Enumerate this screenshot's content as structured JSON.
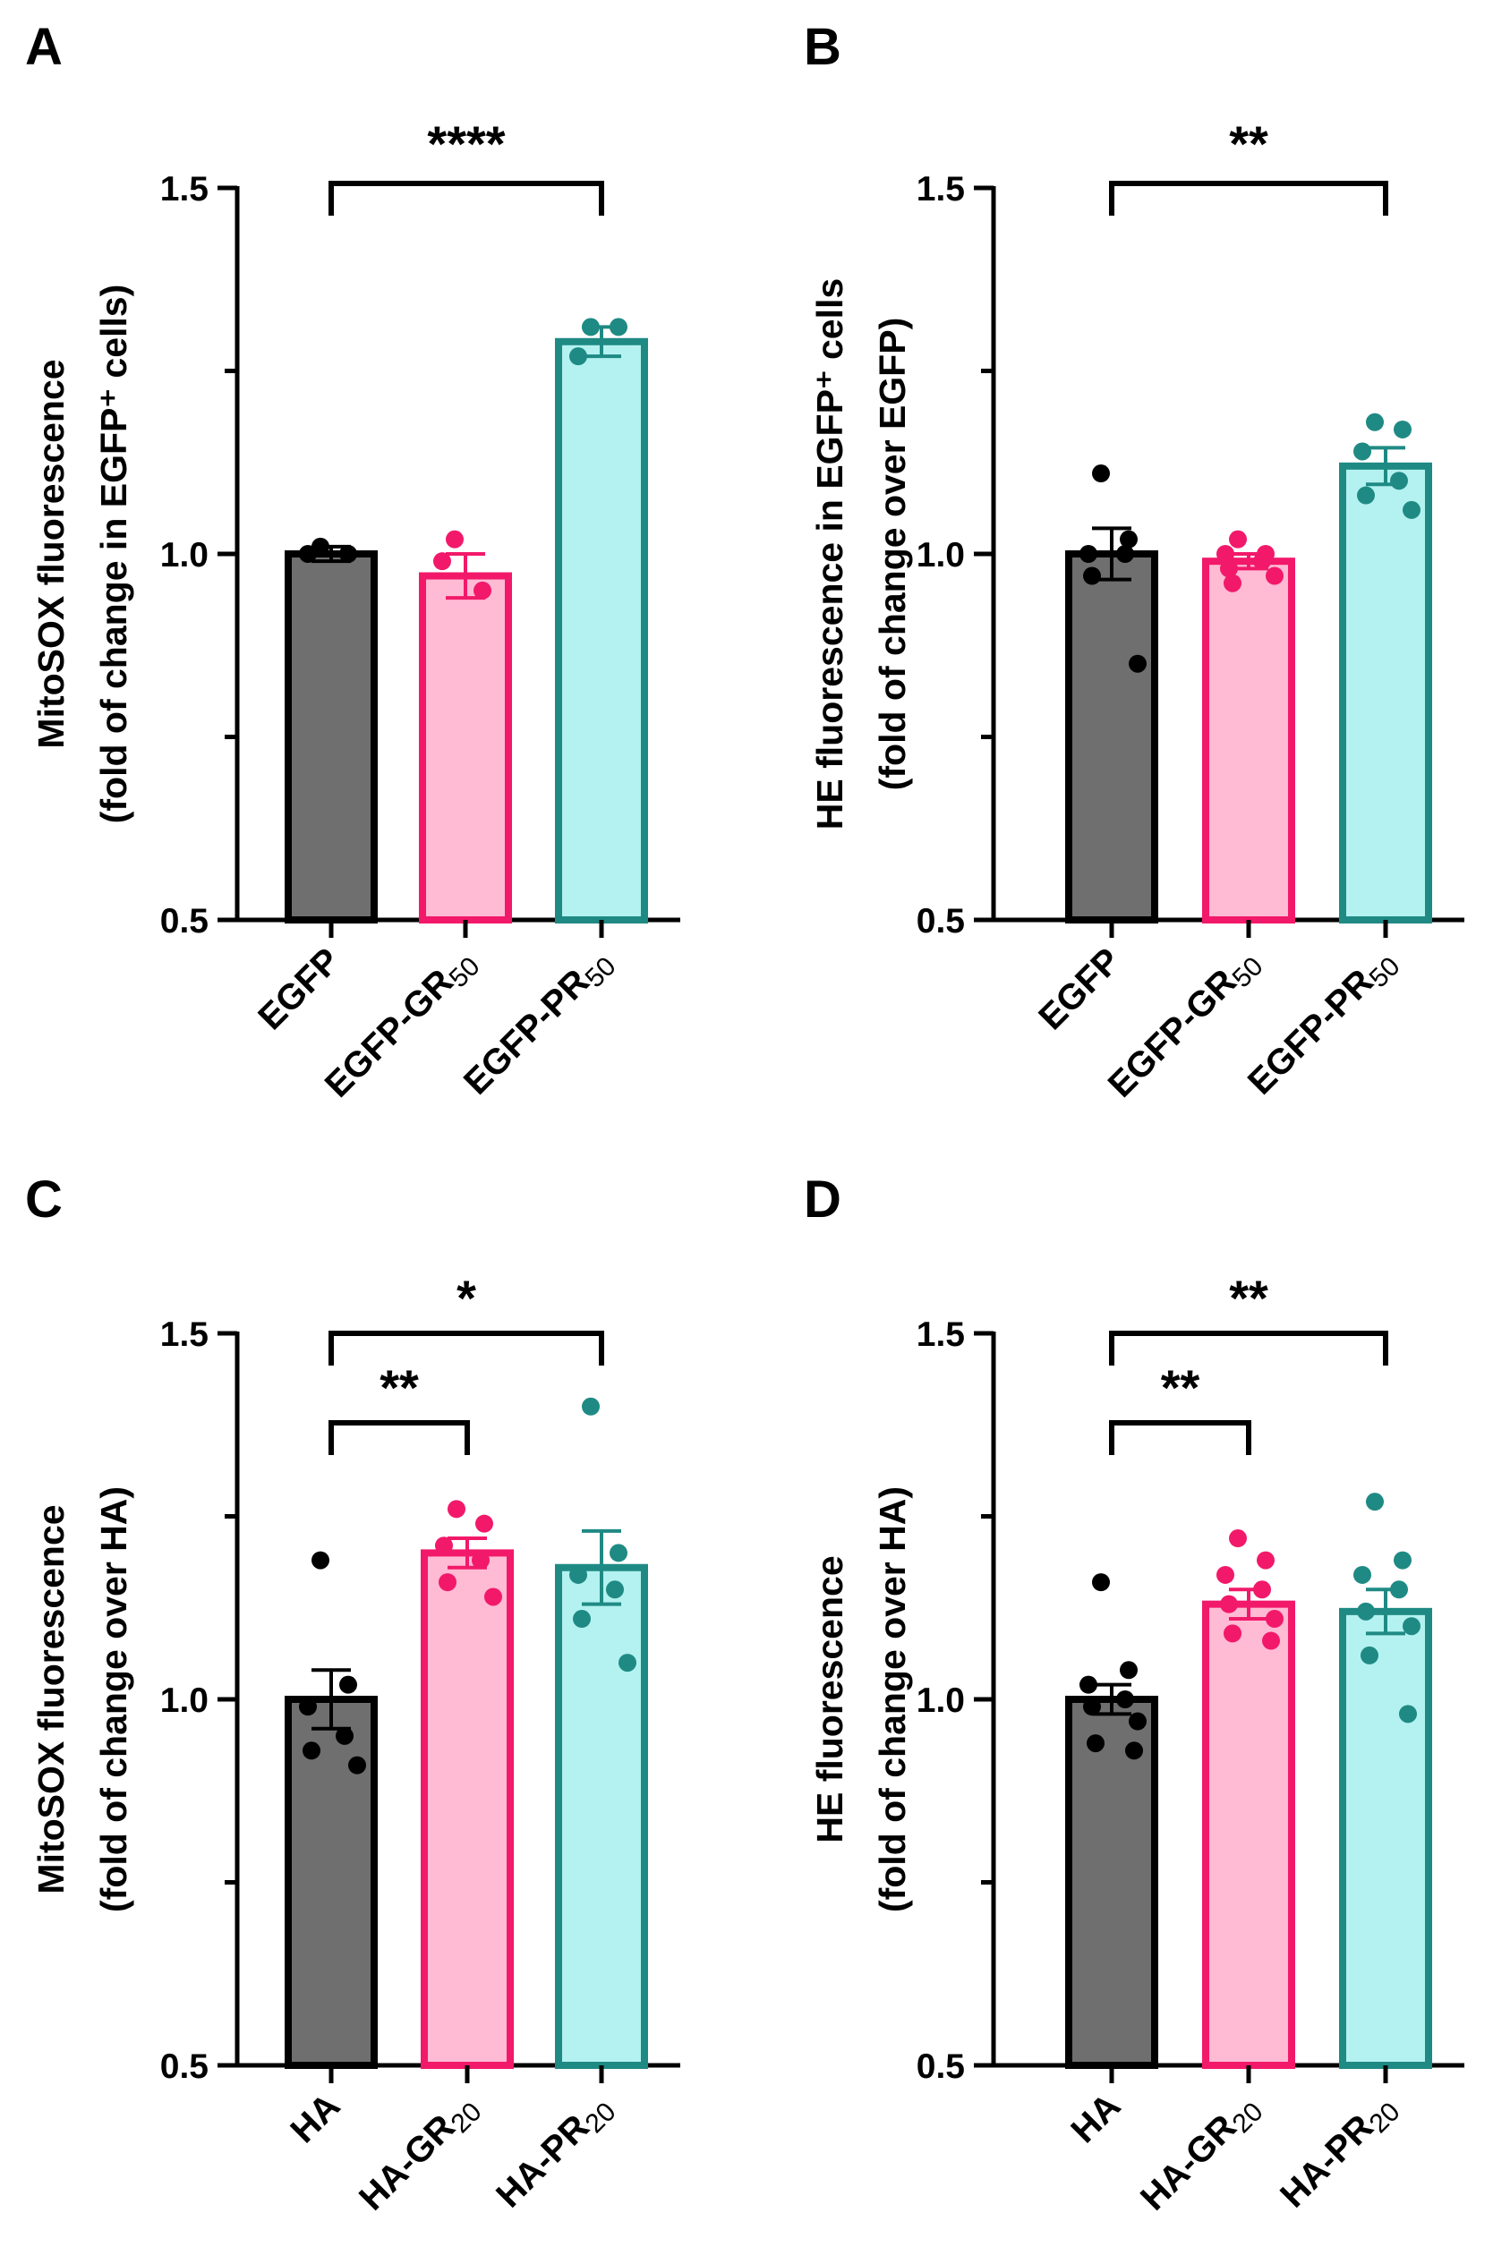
{
  "colors": {
    "control_fill": "#6f6f6f",
    "control_stroke": "#000000",
    "control_dots": "#000000",
    "gr_fill": "#ffbad4",
    "gr_stroke": "#f2196a",
    "gr_dots": "#f2196a",
    "pr_fill": "#b3f2f0",
    "pr_stroke": "#1f8a84",
    "pr_dots": "#1f8a84"
  },
  "chart_data": [
    {
      "type": "bar",
      "panel": "A",
      "ylabel": [
        "MitoSOX fluorescence",
        "(fold of change in EGFP⁺ cells)"
      ],
      "ylim": [
        0.5,
        1.5
      ],
      "yticks": [
        "0.5",
        "1.0",
        "1.5"
      ],
      "categories": [
        {
          "main": "EGFP",
          "sub": ""
        },
        {
          "main": "EGFP-GR",
          "sub": "50"
        },
        {
          "main": "EGFP-PR",
          "sub": "50"
        }
      ],
      "values": [
        1.0,
        0.97,
        1.29
      ],
      "sem": [
        0.01,
        0.03,
        0.02
      ],
      "points": [
        [
          1.01,
          1.0,
          1.0
        ],
        [
          1.02,
          0.95,
          0.99
        ],
        [
          1.31,
          1.31,
          1.27
        ]
      ],
      "significance": [
        {
          "from": 0,
          "to": 2,
          "label": "****"
        }
      ]
    },
    {
      "type": "bar",
      "panel": "B",
      "ylabel": [
        "HE fluorescence in EGFP⁺ cells",
        "(fold of change over EGFP)"
      ],
      "ylim": [
        0.5,
        1.5
      ],
      "yticks": [
        "0.5",
        "1.0",
        "1.5"
      ],
      "categories": [
        {
          "main": "EGFP",
          "sub": ""
        },
        {
          "main": "EGFP-GR",
          "sub": "50"
        },
        {
          "main": "EGFP-PR",
          "sub": "50"
        }
      ],
      "values": [
        1.0,
        0.99,
        1.12
      ],
      "sem": [
        0.035,
        0.01,
        0.025
      ],
      "points": [
        [
          1.11,
          1.02,
          1.0,
          1.0,
          0.97,
          0.85
        ],
        [
          1.02,
          1.0,
          1.0,
          0.99,
          0.98,
          0.97,
          0.96
        ],
        [
          1.18,
          1.17,
          1.14,
          1.1,
          1.08,
          1.06
        ]
      ],
      "significance": [
        {
          "from": 0,
          "to": 2,
          "label": "**"
        }
      ]
    },
    {
      "type": "bar",
      "panel": "C",
      "ylabel": [
        "MitoSOX fluorescence",
        "(fold of change over HA)"
      ],
      "ylim": [
        0.5,
        1.5
      ],
      "yticks": [
        "0.5",
        "1.0",
        "1.5"
      ],
      "categories": [
        {
          "main": "HA",
          "sub": ""
        },
        {
          "main": "HA-GR",
          "sub": "20"
        },
        {
          "main": "HA-PR",
          "sub": "20"
        }
      ],
      "values": [
        1.0,
        1.2,
        1.18
      ],
      "sem": [
        0.04,
        0.02,
        0.05
      ],
      "points": [
        [
          1.19,
          1.02,
          0.99,
          0.95,
          0.93,
          0.91
        ],
        [
          1.26,
          1.24,
          1.21,
          1.19,
          1.16,
          1.14
        ],
        [
          1.4,
          1.2,
          1.17,
          1.15,
          1.11,
          1.05
        ]
      ],
      "significance": [
        {
          "from": 0,
          "to": 1,
          "label": "**"
        },
        {
          "from": 0,
          "to": 2,
          "label": "*"
        }
      ]
    },
    {
      "type": "bar",
      "panel": "D",
      "ylabel": [
        "HE fluorescence",
        "(fold of change over HA)"
      ],
      "ylim": [
        0.5,
        1.5
      ],
      "yticks": [
        "0.5",
        "1.0",
        "1.5"
      ],
      "categories": [
        {
          "main": "HA",
          "sub": ""
        },
        {
          "main": "HA-GR",
          "sub": "20"
        },
        {
          "main": "HA-PR",
          "sub": "20"
        }
      ],
      "values": [
        1.0,
        1.13,
        1.12
      ],
      "sem": [
        0.02,
        0.02,
        0.03
      ],
      "points": [
        [
          1.16,
          1.04,
          1.02,
          1.0,
          0.99,
          0.97,
          0.94,
          0.93
        ],
        [
          1.22,
          1.19,
          1.17,
          1.15,
          1.13,
          1.11,
          1.09,
          1.08
        ],
        [
          1.27,
          1.19,
          1.17,
          1.15,
          1.12,
          1.1,
          1.06,
          0.98
        ]
      ],
      "significance": [
        {
          "from": 0,
          "to": 1,
          "label": "**"
        },
        {
          "from": 0,
          "to": 2,
          "label": "**"
        }
      ]
    }
  ]
}
